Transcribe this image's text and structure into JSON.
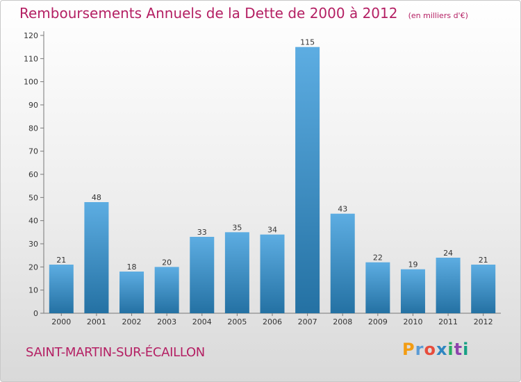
{
  "title": "Remboursements Annuels de la Dette de 2000 à 2012",
  "subtitle": "(en milliers d'€)",
  "place": "SAINT-MARTIN-SUR-ÉCAILLON",
  "brand": {
    "text": "Proxiti",
    "letter_colors": [
      "#f39c12",
      "#5b9bd5",
      "#e74c3c",
      "#2e86c1",
      "#27ae60",
      "#8e44ad",
      "#16a085"
    ]
  },
  "colors": {
    "title": "#b41f63",
    "bar_light": "#5dade2",
    "bar_dark": "#2471a3"
  },
  "chart_data": {
    "type": "bar",
    "categories": [
      "2000",
      "2001",
      "2002",
      "2003",
      "2004",
      "2005",
      "2006",
      "2007",
      "2008",
      "2009",
      "2010",
      "2011",
      "2012"
    ],
    "values": [
      21,
      48,
      18,
      20,
      33,
      35,
      34,
      115,
      43,
      22,
      19,
      24,
      21
    ],
    "y_ticks": [
      0,
      10,
      20,
      30,
      40,
      50,
      60,
      70,
      80,
      90,
      100,
      110,
      120
    ],
    "ylim": [
      0,
      120
    ],
    "grid": false,
    "data_labels": true
  }
}
